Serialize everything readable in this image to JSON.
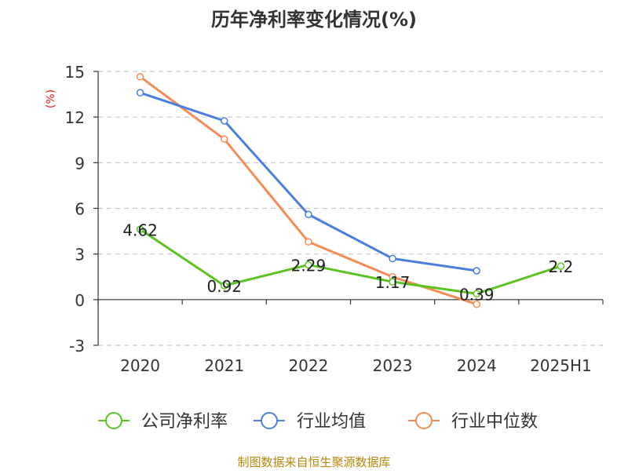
{
  "chart_data": {
    "type": "line",
    "title": "历年净利率变化情况(%)",
    "ylabel": "(%)",
    "categories": [
      "2020",
      "2021",
      "2022",
      "2023",
      "2024",
      "2025H1"
    ],
    "yticks": [
      "15",
      "12",
      "9",
      "6",
      "3",
      "0",
      "-3"
    ],
    "ylim": [
      -3,
      15
    ],
    "grid": true,
    "legend_position": "bottom",
    "series": [
      {
        "name": "公司净利率",
        "color": "#5cc323",
        "values": [
          4.62,
          0.92,
          2.29,
          1.17,
          0.39,
          2.2
        ],
        "labels": [
          "4.62",
          "0.92",
          "2.29",
          "1.17",
          "0.39",
          "2.2"
        ]
      },
      {
        "name": "行业均值",
        "color": "#4a7fe0",
        "values": [
          13.6,
          11.75,
          5.6,
          2.7,
          1.9,
          null
        ],
        "labels": []
      },
      {
        "name": "行业中位数",
        "color": "#f58b55",
        "values": [
          14.65,
          10.55,
          3.8,
          1.5,
          -0.3,
          null
        ],
        "labels": []
      }
    ]
  },
  "source": "制图数据来自恒生聚源数据库",
  "colors": {
    "title": "#333333",
    "axis": "#333333",
    "grid": "#c8c8c8",
    "ylabel": "#e02020",
    "source": "#b8860b"
  }
}
